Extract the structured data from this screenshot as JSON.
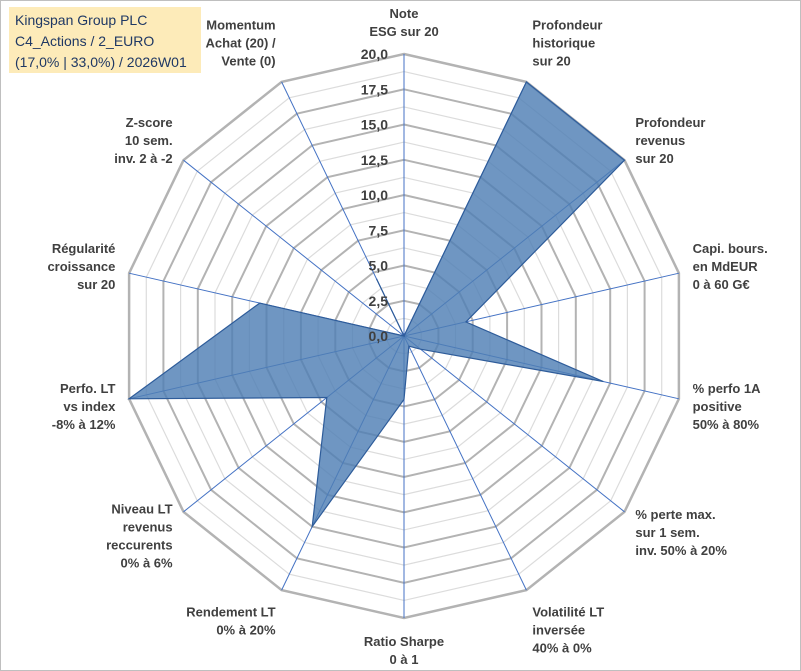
{
  "title_box": {
    "line1": "Kingspan Group PLC",
    "line2": "C4_Actions / 2_EURO",
    "line3": "(17,0% | 33,0%) / 2026W01"
  },
  "colors": {
    "fill": "#4f7fb5",
    "stroke": "#2e5c9a",
    "grid_major": "#b3b3b3",
    "grid_minor": "#dcdcdc",
    "spoke": "#4472c4",
    "title_bg": "#fdebb9"
  },
  "chart_data": {
    "type": "radar",
    "title": "",
    "r_range": [
      0,
      20
    ],
    "tick_labels": [
      "0,0",
      "2,5",
      "5,0",
      "7,5",
      "10,0",
      "12,5",
      "15,0",
      "17,5",
      "20,0"
    ],
    "categories": [
      [
        "Note",
        "ESG sur 20"
      ],
      [
        "Profondeur",
        "historique",
        "sur 20"
      ],
      [
        "Profondeur",
        "revenus",
        "sur 20"
      ],
      [
        "Capi. bours.",
        "en MdEUR",
        "0 à 60 G€"
      ],
      [
        "% perfo 1A",
        "positive",
        "50% à 80%"
      ],
      [
        "% perte max.",
        "sur 1 sem.",
        "inv. 50% à 20%"
      ],
      [
        "Volatilité LT",
        "inversée",
        "40% à 0%"
      ],
      [
        "Ratio Sharpe",
        "0 à 1"
      ],
      [
        "Rendement LT",
        "0% à 20%"
      ],
      [
        "Niveau LT",
        "revenus",
        "reccurents",
        "0% à 6%"
      ],
      [
        "Perfo. LT",
        "vs index",
        "-8% à 12%"
      ],
      [
        "Régularité",
        "croissance",
        "sur 20"
      ],
      [
        "Z-score",
        "10 sem.",
        "inv. 2 à -2"
      ],
      [
        "Momentum",
        "Achat (20) /",
        "Vente (0)"
      ]
    ],
    "series": [
      {
        "name": "Kingspan Group PLC",
        "values": [
          0,
          20,
          20,
          4.5,
          14.5,
          1.5,
          0.8,
          4.5,
          15,
          7,
          20,
          10.5,
          0,
          4.5
        ]
      }
    ]
  }
}
